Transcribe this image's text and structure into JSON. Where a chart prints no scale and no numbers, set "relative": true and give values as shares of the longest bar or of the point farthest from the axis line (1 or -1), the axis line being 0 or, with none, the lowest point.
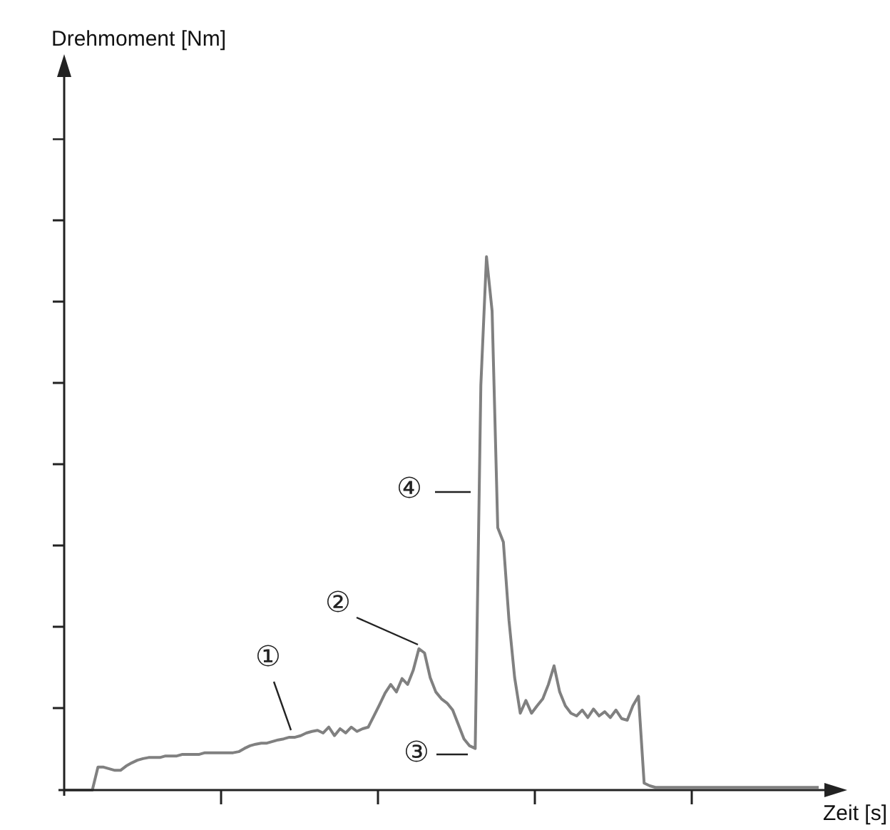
{
  "chart_data": {
    "type": "line",
    "relative": true,
    "xlabel": "Zeit [s]",
    "color": "#808080",
    "marker": "none",
    "grid": false,
    "annotations": [
      "①",
      "②",
      "③",
      "④",
      "Drehmoment [Nm]"
    ],
    "categories": [
      null,
      null,
      null,
      null,
      null,
      null,
      null,
      null,
      null,
      null,
      null,
      null,
      null,
      null,
      null,
      null,
      null,
      null,
      null,
      null,
      null,
      null,
      null,
      null,
      null,
      null,
      null,
      null,
      null,
      null,
      null,
      null,
      null,
      null,
      null,
      null,
      null,
      null,
      null,
      null,
      null,
      null,
      null,
      null,
      null,
      null,
      null,
      null,
      null,
      null,
      null,
      null,
      null,
      null,
      null,
      null,
      null,
      null,
      null,
      null,
      null,
      null,
      null,
      null,
      null,
      null,
      null,
      null,
      null,
      null,
      null,
      null,
      null,
      null,
      null,
      null,
      null,
      null,
      null,
      null,
      null,
      null,
      null,
      null,
      null,
      null,
      null,
      null,
      null,
      null,
      null,
      null,
      null,
      null,
      null,
      null,
      null,
      null,
      null,
      null,
      null,
      null,
      null,
      null,
      null,
      null,
      null,
      null,
      null,
      null,
      null,
      null,
      null,
      null,
      null,
      null,
      null,
      null,
      null,
      null,
      null,
      null,
      null,
      null,
      null,
      null,
      null,
      null,
      null,
      null,
      null,
      null,
      null,
      null,
      null
    ],
    "values": [
      0,
      0,
      0,
      0,
      0,
      0,
      0.043,
      0.043,
      0.04,
      0.037,
      0.037,
      0.045,
      0.051,
      0.056,
      0.059,
      0.061,
      0.061,
      0.061,
      0.064,
      0.064,
      0.064,
      0.067,
      0.067,
      0.067,
      0.067,
      0.07,
      0.07,
      0.07,
      0.07,
      0.07,
      0.07,
      0.072,
      0.078,
      0.083,
      0.086,
      0.088,
      0.088,
      0.091,
      0.094,
      0.096,
      0.099,
      0.099,
      0.102,
      0.107,
      0.11,
      0.112,
      0.107,
      0.118,
      0.102,
      0.115,
      0.107,
      0.118,
      0.11,
      0.115,
      0.118,
      0.139,
      0.16,
      0.182,
      0.198,
      0.184,
      0.209,
      0.198,
      0.225,
      0.265,
      0.257,
      0.211,
      0.184,
      0.171,
      0.163,
      0.15,
      0.123,
      0.096,
      0.083,
      0.078,
      0.759,
      1,
      0.898,
      0.492,
      0.465,
      0.318,
      0.211,
      0.144,
      0.168,
      0.144,
      0.158,
      0.171,
      0.198,
      0.233,
      0.184,
      0.158,
      0.144,
      0.139,
      0.15,
      0.136,
      0.152,
      0.139,
      0.147,
      0.136,
      0.15,
      0.134,
      0.131,
      0.158,
      0.176,
      0.013,
      0.008,
      0.005,
      0.005,
      0.005,
      0.005,
      0.005,
      0.005,
      0.005,
      0.005,
      0.005,
      0.005,
      0.005,
      0.005,
      0.005,
      0.005,
      0.005,
      0.005,
      0.005,
      0.005,
      0.005,
      0.005,
      0.005,
      0.005,
      0.005,
      0.005,
      0.005,
      0.005,
      0.005,
      0.005,
      0.005,
      0.005
    ]
  }
}
